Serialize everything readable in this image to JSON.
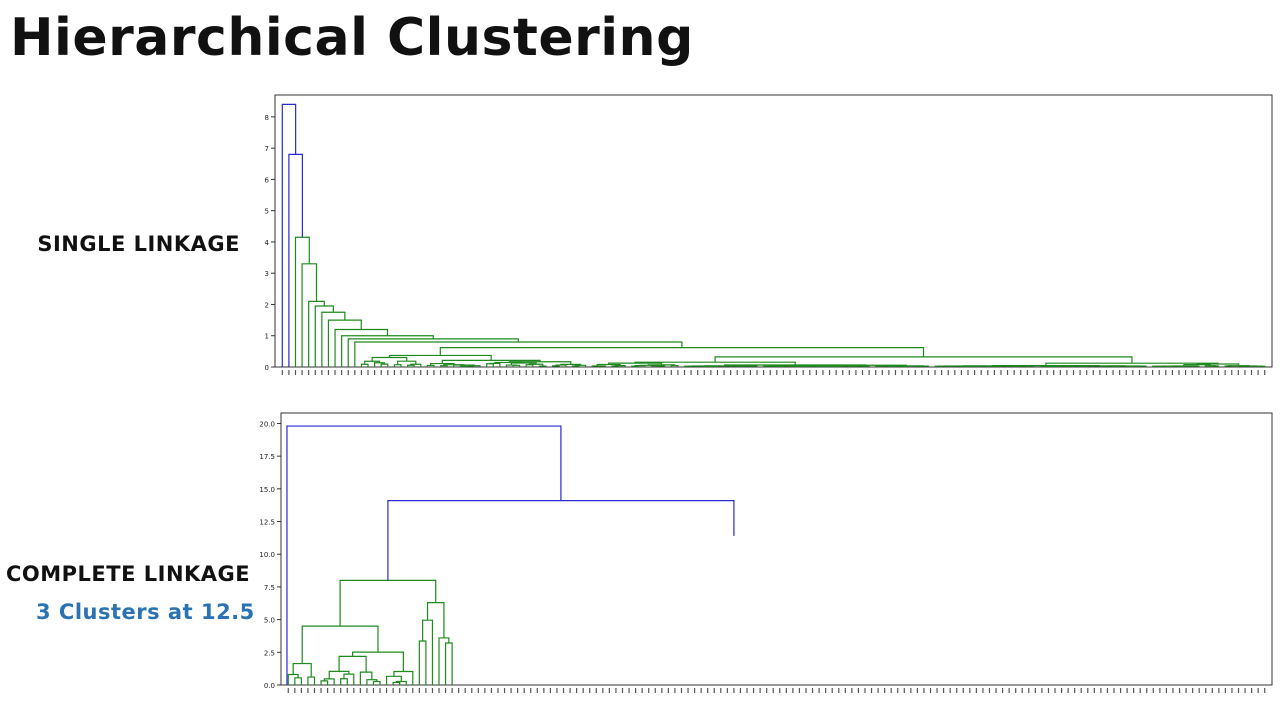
{
  "slide": {
    "title": "Hierarchical Clustering",
    "single_label": "SINGLE LINKAGE",
    "complete_label": "COMPLETE LINKAGE",
    "clusters_label": "3 Clusters at 12.5"
  },
  "colors": {
    "top_link": "#2a2ad4",
    "single_cluster": "#1e8a1e",
    "complete_cluster_a": "#1e8a1e",
    "complete_cluster_b": "#e8232a",
    "clusters_text": "#2a72b0"
  },
  "chart_data": [
    {
      "type": "dendrogram",
      "linkage": "single",
      "leaf_count": 150,
      "ylim": [
        0,
        8.7
      ],
      "yticks": [
        0,
        1,
        2,
        3,
        4,
        5,
        6,
        7,
        8
      ],
      "ytick_labels": [
        "0",
        "1",
        "2",
        "3",
        "4",
        "5",
        "6",
        "7",
        "8"
      ],
      "merges": [
        {
          "height": 8.4,
          "color": "blue"
        },
        {
          "height": 6.8,
          "color": "blue"
        },
        {
          "height": 4.15,
          "color": "green"
        },
        {
          "height": 3.3,
          "color": "green"
        },
        {
          "height": 2.1,
          "color": "green"
        },
        {
          "height": 1.95,
          "color": "green"
        },
        {
          "height": 1.75,
          "color": "green"
        },
        {
          "height": 1.5,
          "color": "green"
        },
        {
          "height": 1.2,
          "color": "green"
        },
        {
          "height": 1.0,
          "color": "green"
        },
        {
          "height": 0.9,
          "color": "green"
        },
        {
          "height": 0.8,
          "color": "green"
        },
        {
          "height": 0.7,
          "color": "green"
        },
        {
          "height": 0.6,
          "color": "green"
        }
      ]
    },
    {
      "type": "dendrogram",
      "linkage": "complete",
      "leaf_count": 150,
      "ylim": [
        0,
        20.8
      ],
      "yticks": [
        0,
        2.5,
        5,
        7.5,
        10,
        12.5,
        15,
        17.5,
        20
      ],
      "ytick_labels": [
        "0.0",
        "2.5",
        "5.0",
        "7.5",
        "10.0",
        "12.5",
        "15.0",
        "17.5",
        "20.0"
      ],
      "merges": [
        {
          "height": 19.8,
          "color": "blue"
        },
        {
          "height": 14.1,
          "color": "blue"
        },
        {
          "height": 11.4,
          "color": "red"
        },
        {
          "height": 8.6,
          "color": "red"
        },
        {
          "height": 8.0,
          "color": "green"
        },
        {
          "height": 6.3,
          "color": "red"
        },
        {
          "height": 5.2,
          "color": "red"
        },
        {
          "height": 4.8,
          "color": "red"
        },
        {
          "height": 4.5,
          "color": "green"
        },
        {
          "height": 3.8,
          "color": "red"
        },
        {
          "height": 3.2,
          "color": "red"
        },
        {
          "height": 2.9,
          "color": "green"
        },
        {
          "height": 2.7,
          "color": "red"
        }
      ]
    }
  ]
}
